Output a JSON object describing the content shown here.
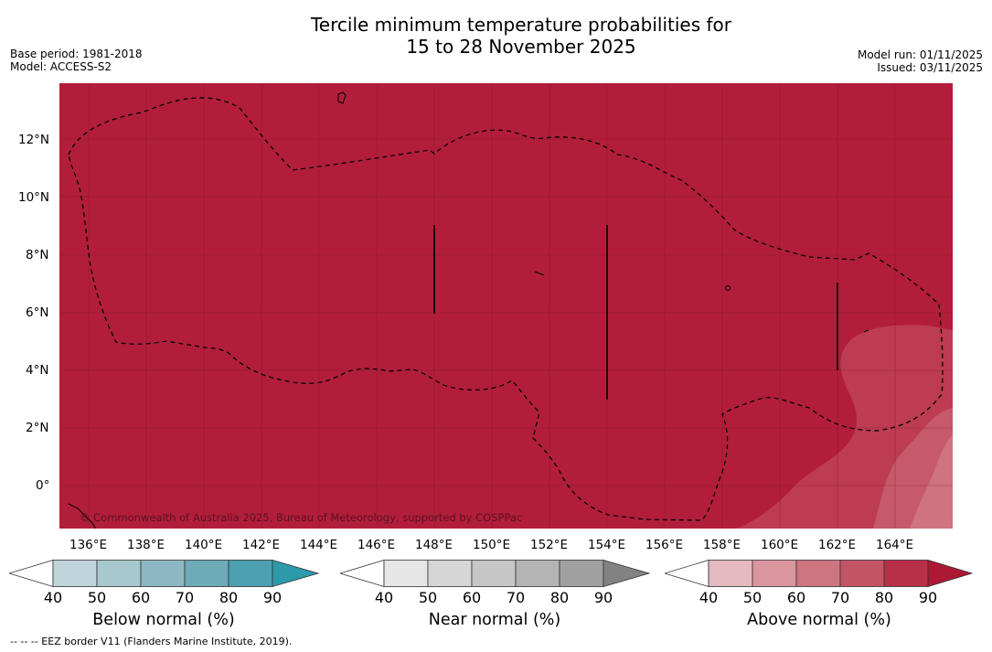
{
  "title": {
    "line1": "Tercile minimum temperature probabilities for",
    "line2": "15 to 28 November 2025"
  },
  "meta": {
    "base_period": "Base period: 1981-2018",
    "model": "Model: ACCESS-S2",
    "model_run": "Model run: 01/11/2025",
    "issued": "Issued: 03/11/2025"
  },
  "map": {
    "fill_color": "#b21e3a",
    "copyright": "© Commonwealth of Australia 2025, Bureau of Meteorology, supported by COSPPac",
    "lat_labels": [
      "12°N",
      "10°N",
      "8°N",
      "6°N",
      "4°N",
      "2°N",
      "0°"
    ],
    "lon_labels": [
      "136°E",
      "138°E",
      "140°E",
      "142°E",
      "144°E",
      "146°E",
      "148°E",
      "150°E",
      "152°E",
      "154°E",
      "156°E",
      "158°E",
      "160°E",
      "162°E",
      "164°E"
    ]
  },
  "colorbars": [
    {
      "label": "Below normal (%)",
      "ticks": [
        "40",
        "50",
        "60",
        "70",
        "80",
        "90"
      ],
      "colors": [
        "#bfd4db",
        "#a6c8ce",
        "#8bb8c3",
        "#6eaab8",
        "#4ca0b1",
        "#2c9aab"
      ],
      "under": "#ffffff"
    },
    {
      "label": "Near normal (%)",
      "ticks": [
        "40",
        "50",
        "60",
        "70",
        "80",
        "90"
      ],
      "colors": [
        "#e6e6e6",
        "#d6d6d6",
        "#c6c6c6",
        "#b4b4b4",
        "#a0a0a0",
        "#828282"
      ],
      "under": "#ffffff"
    },
    {
      "label": "Above normal (%)",
      "ticks": [
        "40",
        "50",
        "60",
        "70",
        "80",
        "90"
      ],
      "colors": [
        "#e4b9c0",
        "#d9969f",
        "#cd7580",
        "#c25464",
        "#b82f48",
        "#ad1834"
      ],
      "under": "#ffffff"
    }
  ],
  "footer": "--  --  -- EEZ border V11 (Flanders Marine Institute, 2019)."
}
